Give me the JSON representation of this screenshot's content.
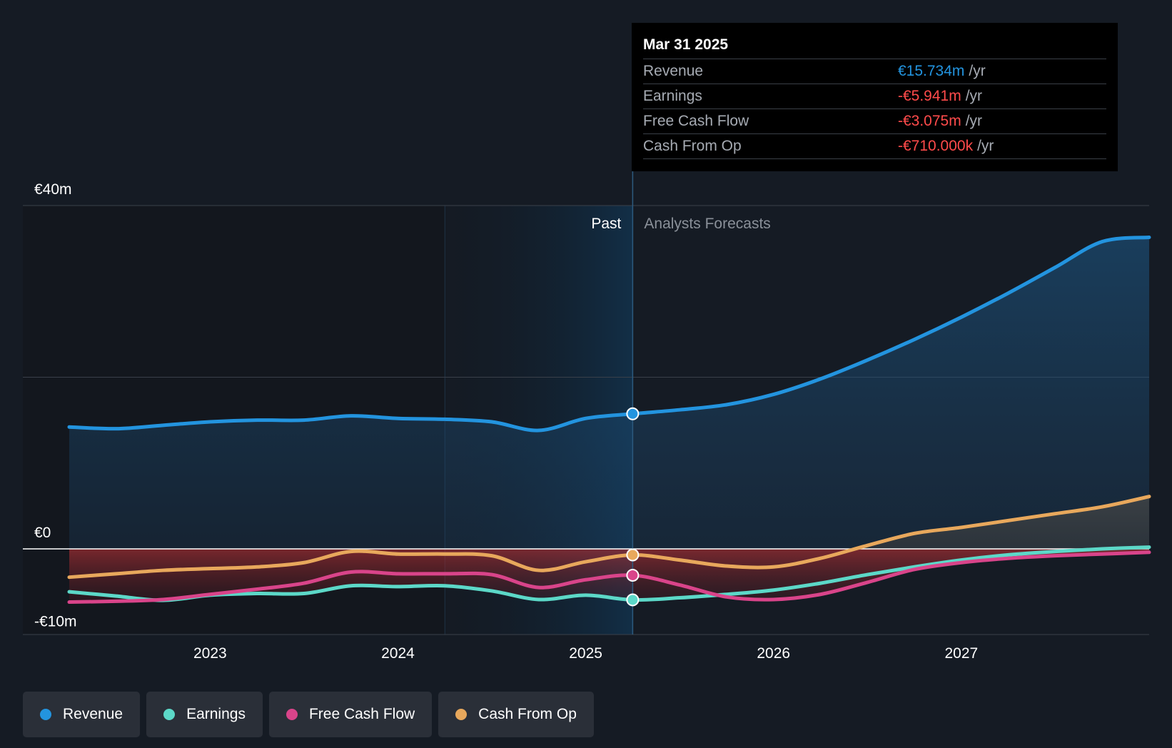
{
  "tooltip": {
    "date": "Mar 31 2025",
    "rows": [
      {
        "label": "Revenue",
        "value": "€15.734m",
        "unit": "/yr",
        "color": "#2394df"
      },
      {
        "label": "Earnings",
        "value": "-€5.941m",
        "unit": "/yr",
        "color": "#ff4b4b"
      },
      {
        "label": "Free Cash Flow",
        "value": "-€3.075m",
        "unit": "/yr",
        "color": "#ff4b4b"
      },
      {
        "label": "Cash From Op",
        "value": "-€710.000k",
        "unit": "/yr",
        "color": "#ff4b4b"
      }
    ]
  },
  "legend": [
    {
      "label": "Revenue",
      "color": "#2394df"
    },
    {
      "label": "Earnings",
      "color": "#5cd8c8"
    },
    {
      "label": "Free Cash Flow",
      "color": "#d9448a"
    },
    {
      "label": "Cash From Op",
      "color": "#e8a85c"
    }
  ],
  "chart_data": {
    "type": "line",
    "y_tick_labels": [
      "€40m",
      "€0",
      "-€10m"
    ],
    "y_ticks": [
      40,
      0,
      -10
    ],
    "ylim": [
      -10,
      40
    ],
    "xlim": [
      2022.25,
      2028.0
    ],
    "x_ticks": [
      2023,
      2024,
      2025,
      2026,
      2027
    ],
    "x_tick_labels": [
      "2023",
      "2024",
      "2025",
      "2026",
      "2027"
    ],
    "past_label": "Past",
    "forecast_label": "Analysts Forecasts",
    "past_end": 2025.25,
    "shade_start": 2024.25,
    "grid": true,
    "legend_position": "bottom-left",
    "series": [
      {
        "name": "Revenue",
        "color": "#2394df",
        "x": [
          2022.25,
          2022.5,
          2022.75,
          2023.0,
          2023.25,
          2023.5,
          2023.75,
          2024.0,
          2024.25,
          2024.5,
          2024.75,
          2025.0,
          2025.25,
          2025.5,
          2025.75,
          2026.0,
          2026.25,
          2026.5,
          2026.75,
          2027.0,
          2027.25,
          2027.5,
          2027.75,
          2028.0
        ],
        "values": [
          14.2,
          14.0,
          14.4,
          14.8,
          15.0,
          15.0,
          15.5,
          15.2,
          15.1,
          14.8,
          13.8,
          15.2,
          15.734,
          16.2,
          16.8,
          18.0,
          19.8,
          22.0,
          24.4,
          27.0,
          29.8,
          32.8,
          35.8,
          36.3
        ],
        "forecast_from": 2025.25
      },
      {
        "name": "Earnings",
        "color": "#5cd8c8",
        "x": [
          2022.25,
          2022.5,
          2022.75,
          2023.0,
          2023.25,
          2023.5,
          2023.75,
          2024.0,
          2024.25,
          2024.5,
          2024.75,
          2025.0,
          2025.25,
          2025.5,
          2025.75,
          2026.0,
          2026.25,
          2026.5,
          2026.75,
          2027.0,
          2027.25,
          2027.5,
          2027.75,
          2028.0
        ],
        "values": [
          -5.0,
          -5.5,
          -6.0,
          -5.4,
          -5.2,
          -5.2,
          -4.3,
          -4.4,
          -4.3,
          -4.9,
          -5.9,
          -5.4,
          -5.941,
          -5.7,
          -5.3,
          -4.8,
          -4.0,
          -3.0,
          -2.1,
          -1.3,
          -0.7,
          -0.3,
          0.0,
          0.2
        ],
        "forecast_from": 2025.25
      },
      {
        "name": "Free Cash Flow",
        "color": "#d9448a",
        "x": [
          2022.25,
          2022.5,
          2022.75,
          2023.0,
          2023.25,
          2023.5,
          2023.75,
          2024.0,
          2024.25,
          2024.5,
          2024.75,
          2025.0,
          2025.25,
          2025.5,
          2025.75,
          2026.0,
          2026.25,
          2026.5,
          2026.75,
          2027.0,
          2027.25,
          2027.5,
          2027.75,
          2028.0
        ],
        "values": [
          -6.2,
          -6.1,
          -5.9,
          -5.3,
          -4.7,
          -4.0,
          -2.7,
          -2.9,
          -2.9,
          -3.0,
          -4.5,
          -3.6,
          -3.075,
          -4.2,
          -5.6,
          -5.9,
          -5.3,
          -3.9,
          -2.4,
          -1.6,
          -1.1,
          -0.8,
          -0.6,
          -0.4
        ],
        "forecast_from": 2025.25
      },
      {
        "name": "Cash From Op",
        "color": "#e8a85c",
        "x": [
          2022.25,
          2022.5,
          2022.75,
          2023.0,
          2023.25,
          2023.5,
          2023.75,
          2024.0,
          2024.25,
          2024.5,
          2024.75,
          2025.0,
          2025.25,
          2025.5,
          2025.75,
          2026.0,
          2026.25,
          2026.5,
          2026.75,
          2027.0,
          2027.25,
          2027.5,
          2027.75,
          2028.0
        ],
        "values": [
          -3.3,
          -2.9,
          -2.5,
          -2.3,
          -2.1,
          -1.6,
          -0.3,
          -0.6,
          -0.6,
          -0.8,
          -2.5,
          -1.5,
          -0.71,
          -1.3,
          -2.0,
          -2.1,
          -1.1,
          0.4,
          1.8,
          2.5,
          3.3,
          4.1,
          4.9,
          6.1
        ],
        "forecast_from": 2025.25
      }
    ]
  }
}
